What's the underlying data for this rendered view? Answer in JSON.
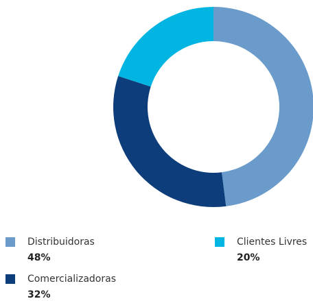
{
  "chart_data": {
    "type": "donut",
    "categories": [
      "Distribuidoras",
      "Comercializadoras",
      "Clientes Livres"
    ],
    "values": [
      48,
      32,
      20
    ],
    "value_labels": [
      "48%",
      "32%",
      "20%"
    ],
    "colors": [
      "#6a9bcb",
      "#0d3d7a",
      "#00b5e2"
    ]
  }
}
